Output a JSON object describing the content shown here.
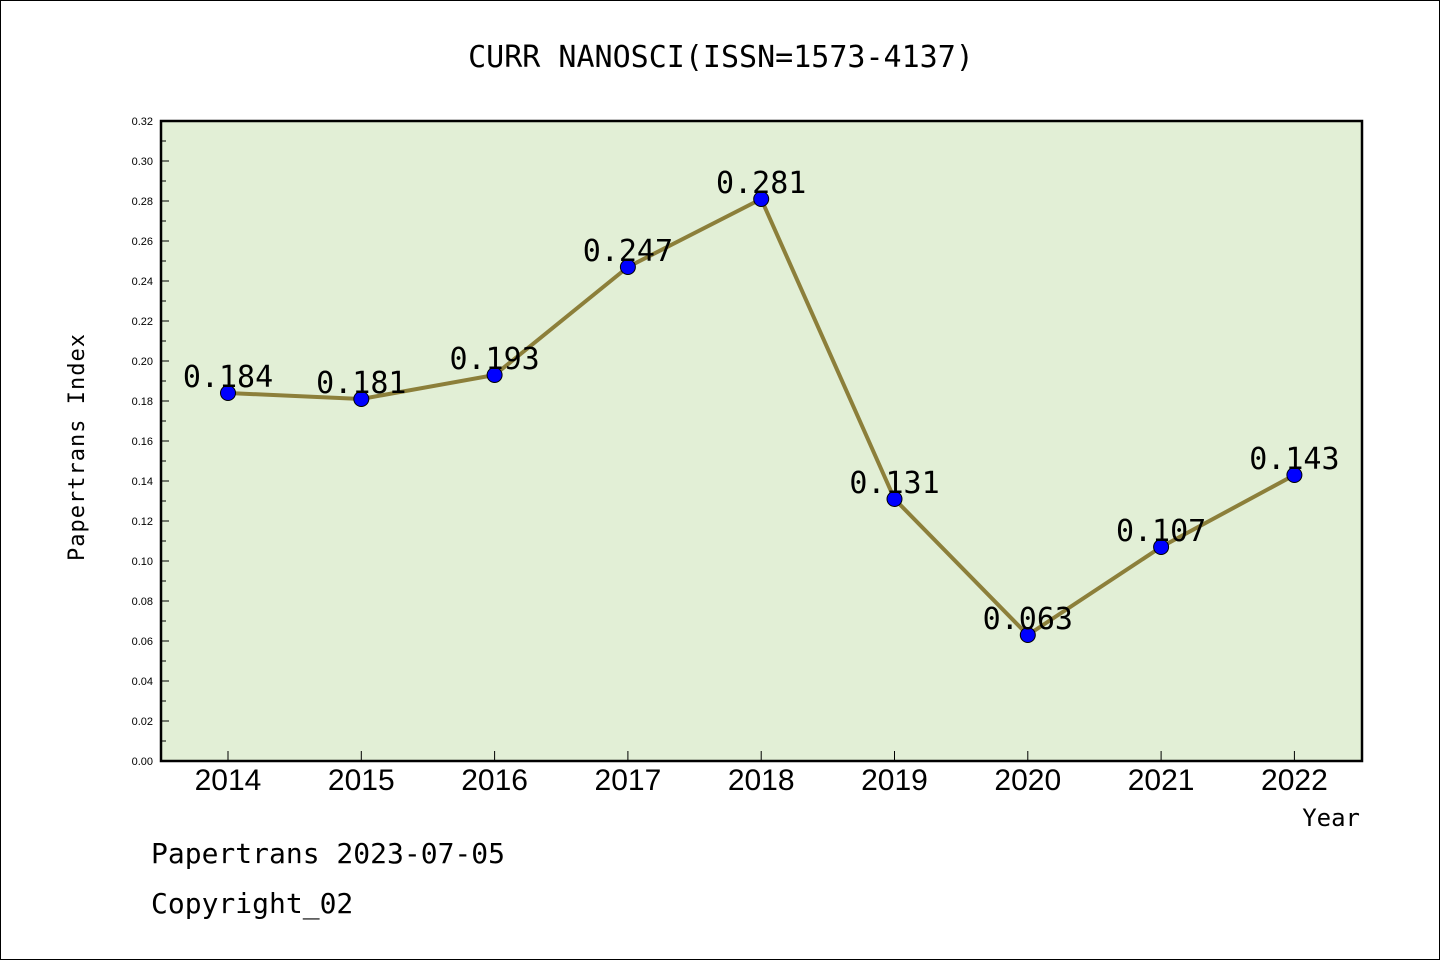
{
  "chart_data": {
    "type": "line",
    "title": "CURR NANOSCI(ISSN=1573-4137)",
    "xlabel": "Year",
    "ylabel": "Papertrans Index",
    "categories": [
      "2014",
      "2015",
      "2016",
      "2017",
      "2018",
      "2019",
      "2020",
      "2021",
      "2022"
    ],
    "values": [
      0.184,
      0.181,
      0.193,
      0.247,
      0.281,
      0.131,
      0.063,
      0.107,
      0.143
    ],
    "data_labels": [
      "0.184",
      "0.181",
      "0.193",
      "0.247",
      "0.281",
      "0.131",
      "0.063",
      "0.107",
      "0.143"
    ],
    "ylim": [
      0,
      0.32
    ],
    "yticks": [
      "0.00",
      "0.02",
      "0.04",
      "0.06",
      "0.08",
      "0.10",
      "0.12",
      "0.14",
      "0.16",
      "0.18",
      "0.20",
      "0.22",
      "0.24",
      "0.26",
      "0.28",
      "0.30",
      "0.32"
    ],
    "grid": false,
    "colors": {
      "plot_background": "#e2efd6",
      "line": "#8c7f3a",
      "marker": "#0000ff"
    }
  },
  "footer": {
    "line1": "Papertrans 2023-07-05",
    "line2": "Copyright_02"
  }
}
